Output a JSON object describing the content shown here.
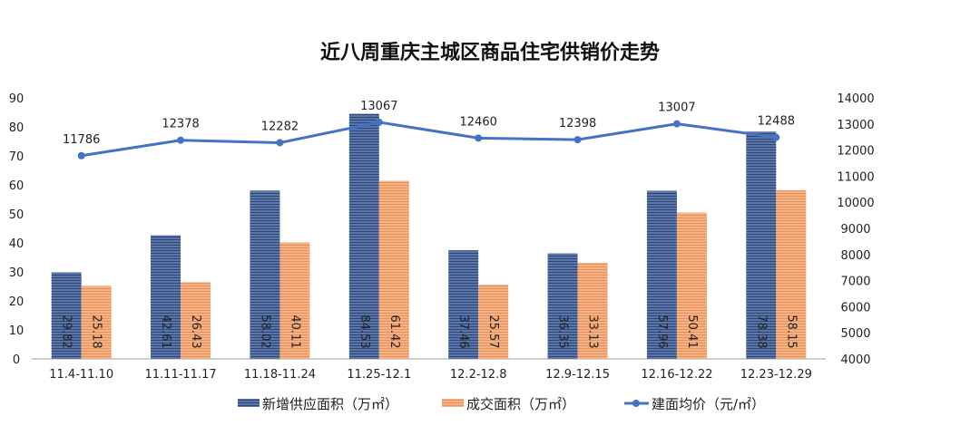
{
  "chart_data": {
    "type": "bar",
    "title": "近八周重庆主城区商品住宅供销价走势",
    "categories": [
      "11.4-11.10",
      "11.11-11.17",
      "11.18-11.24",
      "11.25-12.1",
      "12.2-12.8",
      "12.9-12.15",
      "12.16-12.22",
      "12.23-12.29"
    ],
    "series": [
      {
        "name": "新增供应面积（万㎡）",
        "type": "bar",
        "axis": "left",
        "color": "#3f5a8a",
        "values": [
          29.82,
          42.61,
          58.02,
          84.53,
          37.46,
          36.35,
          57.96,
          78.38
        ]
      },
      {
        "name": "成交面积（万㎡）",
        "type": "bar",
        "axis": "left",
        "color": "#f0a070",
        "values": [
          25.18,
          26.43,
          40.11,
          61.42,
          25.57,
          33.13,
          50.41,
          58.15
        ]
      },
      {
        "name": "建面均价（元/㎡）",
        "type": "line",
        "axis": "right",
        "color": "#4472c4",
        "values": [
          11786,
          12378,
          12282,
          13067,
          12460,
          12398,
          13007,
          12488
        ]
      }
    ],
    "y_left": {
      "min": 0,
      "max": 90,
      "ticks": [
        0,
        10,
        20,
        30,
        40,
        50,
        60,
        70,
        80,
        90
      ]
    },
    "y_right": {
      "min": 4000,
      "max": 14000,
      "ticks": [
        4000,
        5000,
        6000,
        7000,
        8000,
        9000,
        10000,
        11000,
        12000,
        13000,
        14000
      ]
    },
    "grid": false,
    "legend": "bottom"
  }
}
